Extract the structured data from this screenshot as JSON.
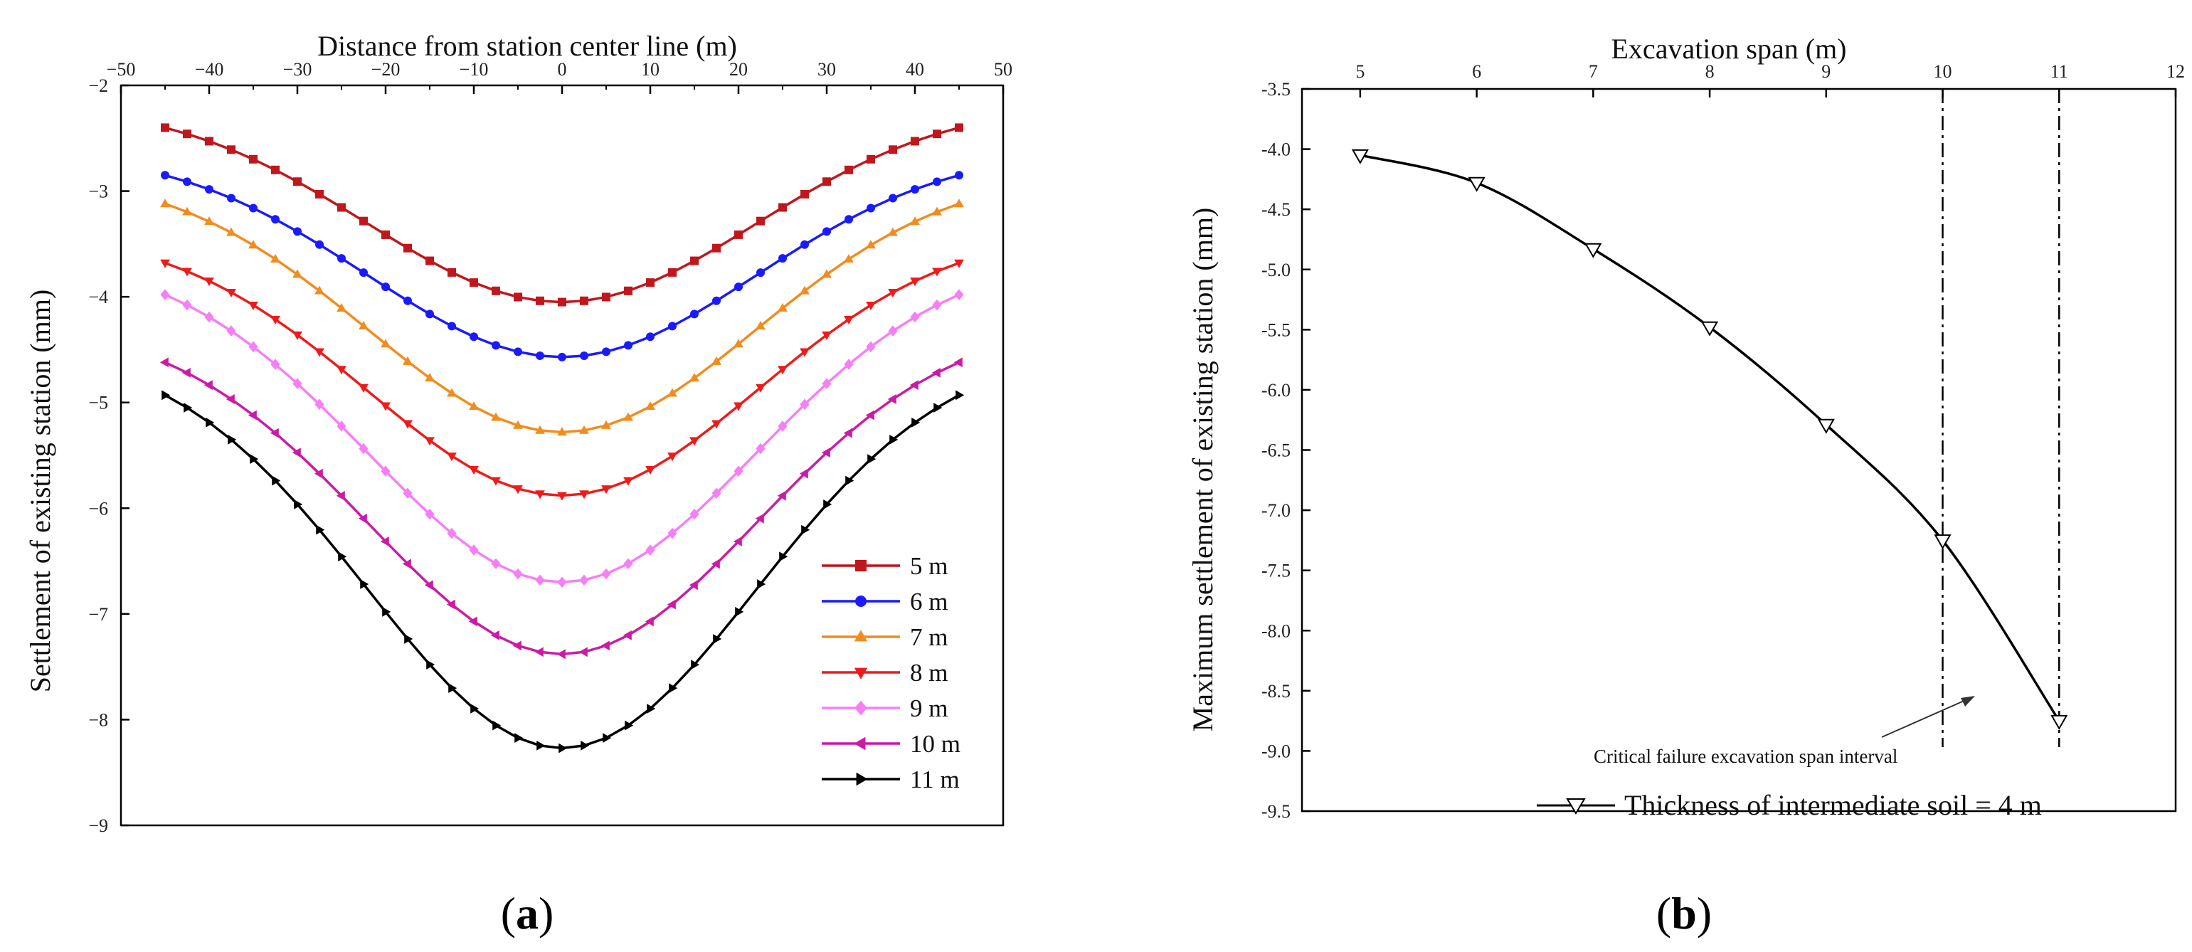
{
  "chart_data": [
    {
      "type": "line",
      "panel_label": "(a)",
      "panel_letter": "a",
      "xlabel": "Distance from station center line (m)",
      "ylabel": "Settlement of existing station (mm)",
      "xlim": [
        -50,
        50
      ],
      "ylim": [
        -9,
        -2
      ],
      "xticks": [
        "−50",
        "−40",
        "−30",
        "−20",
        "−10",
        "0",
        "10",
        "20",
        "30",
        "40",
        "50"
      ],
      "yticks": [
        "−2",
        "−3",
        "−4",
        "−5",
        "−6",
        "−7",
        "−8",
        "−9"
      ],
      "x_range": [
        -45,
        45
      ],
      "legend_position": "bottom-right",
      "series": [
        {
          "name": "5 m",
          "edge": -2.4,
          "center": -4.05,
          "color": "#c0171d",
          "marker": "square"
        },
        {
          "name": "6 m",
          "edge": -2.85,
          "center": -4.57,
          "color": "#1a1aff",
          "marker": "circle"
        },
        {
          "name": "7 m",
          "edge": -3.12,
          "center": -5.28,
          "color": "#f28c1e",
          "marker": "triangle-up"
        },
        {
          "name": "8 m",
          "edge": -3.68,
          "center": -5.88,
          "color": "#f01a1a",
          "marker": "triangle-down"
        },
        {
          "name": "9 m",
          "edge": -3.98,
          "center": -6.7,
          "color": "#f77ef7",
          "marker": "diamond"
        },
        {
          "name": "10 m",
          "edge": -4.62,
          "center": -7.38,
          "color": "#cc1aa6",
          "marker": "triangle-left"
        },
        {
          "name": "11 m",
          "edge": -4.93,
          "center": -8.27,
          "color": "#000000",
          "marker": "triangle-right"
        }
      ]
    },
    {
      "type": "line",
      "panel_label": "(b)",
      "panel_letter": "b",
      "xlabel": "Excavation span (m)",
      "ylabel": "Maximum settlement of existing station (mm)",
      "xlim": [
        4.5,
        12
      ],
      "ylim": [
        -9.5,
        -3.5
      ],
      "xticks": [
        "5",
        "6",
        "7",
        "8",
        "9",
        "10",
        "11",
        "12"
      ],
      "yticks": [
        "-3.5",
        "-4.0",
        "-4.5",
        "-5.0",
        "-5.5",
        "-6.0",
        "-6.5",
        "-7.0",
        "-7.5",
        "-8.0",
        "-8.5",
        "-9.0",
        "-9.5"
      ],
      "series": [
        {
          "name": "Thickness of intermediate soil = 4 m",
          "x": [
            5,
            6,
            7,
            8,
            9,
            10,
            11
          ],
          "y": [
            -4.05,
            -4.28,
            -4.83,
            -5.48,
            -6.29,
            -7.25,
            -8.75
          ],
          "color": "#000000",
          "marker": "triangle-down-open"
        }
      ],
      "reference_lines_x": [
        10,
        11
      ],
      "annotation": "Critical failure excavation span interval",
      "legend_position": "bottom"
    }
  ]
}
